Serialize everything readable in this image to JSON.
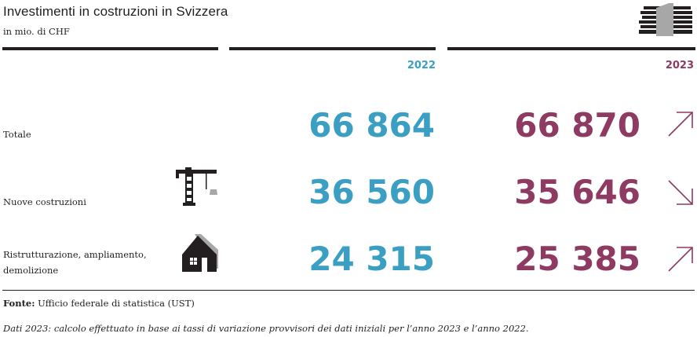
{
  "header": {
    "title": "Investimenti in costruzioni in Svizzera",
    "subtitle": "in mio. di CHF",
    "icon": "banknote-stack-icon"
  },
  "chart_data": {
    "type": "table",
    "title": "Investimenti in costruzioni in Svizzera",
    "subtitle": "in mio. di CHF",
    "columns": [
      "2022",
      "2023"
    ],
    "rows": [
      {
        "label": "Totale",
        "icon": "",
        "values": [
          "66 864",
          "66 870"
        ],
        "trend": "up"
      },
      {
        "label": "Nuove costruzioni",
        "icon": "crane-icon",
        "values": [
          "36 560",
          "35 646"
        ],
        "trend": "down"
      },
      {
        "label": "Ristrutturazione, ampliamento, demolizione",
        "icon": "house-icon",
        "values": [
          "24 315",
          "25 385"
        ],
        "trend": "up"
      }
    ],
    "colors": {
      "2022": "#3a9fc3",
      "2023": "#8e3a62",
      "text": "#231f20"
    }
  },
  "footer": {
    "source_label": "Fonte:",
    "source_text": "Ufficio federale di statistica (UST)",
    "note": "Dati 2023: calcolo effettuato in base ai tassi di variazione provvisori dei dati iniziali per l’anno 2023 e l’anno 2022."
  }
}
